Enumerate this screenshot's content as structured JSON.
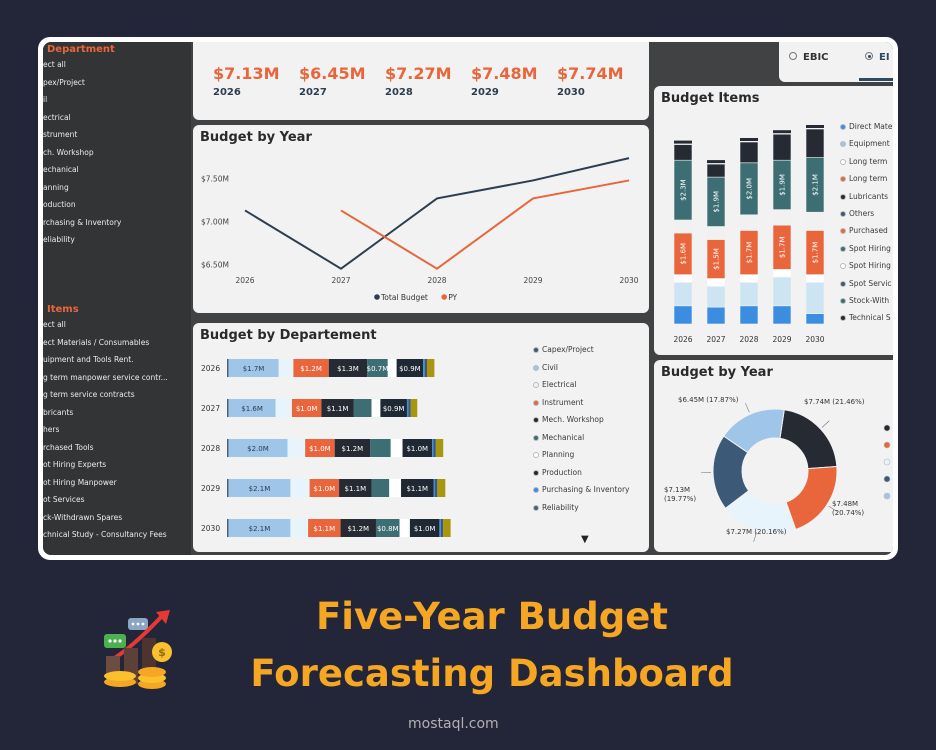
{
  "sidebar": {
    "department_header": "Department",
    "departments": [
      "ect all",
      "pex/Project",
      "il",
      "ectrical",
      "strument",
      "ch. Workshop",
      "echanical",
      "anning",
      "oduction",
      "rchasing & Inventory",
      "eliability"
    ],
    "items_header": "Items",
    "items": [
      "ect all",
      "ect Materials / Consumables",
      "uipment and Tools Rent.",
      "g term manpower service contr...",
      "g term service contracts",
      "bricants",
      "hers",
      "rchased Tools",
      "ot Hiring Experts",
      "ot Hiring Manpower",
      "ot Services",
      "ck-Withdrawn Spares",
      "chnical Study - Consultancy Fees"
    ]
  },
  "kpis": [
    {
      "value": "$7.13M",
      "year": "2026"
    },
    {
      "value": "$6.45M",
      "year": "2027"
    },
    {
      "value": "$7.27M",
      "year": "2028"
    },
    {
      "value": "$7.48M",
      "year": "2029"
    },
    {
      "value": "$7.74M",
      "year": "2030"
    }
  ],
  "tabs": {
    "ebic": "EBIC",
    "second": "EI"
  },
  "line_panel": {
    "title": "Budget by Year"
  },
  "dept_panel": {
    "title": "Budget by Departement"
  },
  "items_panel": {
    "title": "Budget Items"
  },
  "donut_panel": {
    "title": "Budget by Year"
  },
  "colors": {
    "orange": "#e9663c",
    "navy": "#2c3e50",
    "teal": "#3d6e73",
    "dark": "#252a33",
    "lightblue": "#9fc5e8",
    "pale": "#e7f4fb",
    "blue": "#3c8de0",
    "khaki": "#a8960f"
  },
  "chart_data": [
    {
      "type": "line",
      "title": "Budget by Year",
      "x": [
        "2026",
        "2027",
        "2028",
        "2029",
        "2030"
      ],
      "y_ticks": [
        "$6.50M",
        "$7.00M",
        "$7.50M"
      ],
      "ylim": [
        6.4,
        7.8
      ],
      "series": [
        {
          "name": "Total Budget",
          "color": "#2c3e50",
          "values": [
            7.13,
            6.45,
            7.27,
            7.48,
            7.74
          ]
        },
        {
          "name": "PY",
          "color": "#e9663c",
          "values": [
            null,
            7.13,
            6.45,
            7.27,
            7.48
          ]
        }
      ]
    },
    {
      "type": "bar",
      "orientation": "horizontal-stacked",
      "title": "Budget by Departement",
      "categories": [
        "2026",
        "2027",
        "2028",
        "2029",
        "2030"
      ],
      "series": [
        {
          "name": "Reliability",
          "color": "#4b5f75",
          "values": [
            0.05,
            0.05,
            0.05,
            0.05,
            0.05
          ]
        },
        {
          "name": "Civil",
          "color": "#9fc5e8",
          "values": [
            1.7,
            1.6,
            2.0,
            2.1,
            2.1
          ],
          "labels": [
            "$1.7M",
            "$1.6M",
            "$2.0M",
            "$2.1M",
            "$2.1M"
          ]
        },
        {
          "name": "Electrical",
          "color": "#e7f4fb",
          "values": [
            0.5,
            0.55,
            0.6,
            0.65,
            0.6
          ]
        },
        {
          "name": "Instrument",
          "color": "#e9663c",
          "values": [
            1.2,
            1.0,
            1.0,
            1.0,
            1.1
          ],
          "labels": [
            "$1.2M",
            "$1.0M",
            "$1.0M",
            "$1.0M",
            "$1.1M"
          ]
        },
        {
          "name": "Production",
          "color": "#252a33",
          "values": [
            1.3,
            1.1,
            1.2,
            1.1,
            1.2
          ],
          "labels": [
            "$1.3M",
            "$1.1M",
            "$1.2M",
            "$1.1M",
            "$1.2M"
          ]
        },
        {
          "name": "Mechanical",
          "color": "#3d6e73",
          "values": [
            0.7,
            0.6,
            0.7,
            0.6,
            0.8
          ],
          "labels": [
            "$0.7M",
            "",
            "",
            "",
            "$0.8M"
          ]
        },
        {
          "name": "Planning",
          "color": "#ffffff",
          "values": [
            0.3,
            0.3,
            0.4,
            0.4,
            0.35
          ]
        },
        {
          "name": "Mech. Workshop",
          "color": "#1e2933",
          "values": [
            0.9,
            0.9,
            1.0,
            1.1,
            1.0
          ],
          "labels": [
            "$0.9M",
            "$0.9M",
            "$1.0M",
            "$1.1M",
            "$1.0M"
          ]
        },
        {
          "name": "Purchasing & Inventory",
          "color": "#3c8de0",
          "values": [
            0.05,
            0.05,
            0.05,
            0.05,
            0.05
          ]
        },
        {
          "name": "Capex/Project",
          "color": "#3c5a78",
          "values": [
            0.08,
            0.08,
            0.08,
            0.08,
            0.08
          ]
        },
        {
          "name": "Other",
          "color": "#a8960f",
          "values": [
            0.25,
            0.22,
            0.25,
            0.27,
            0.25
          ]
        }
      ],
      "legend": [
        "Capex/Project",
        "Civil",
        "Electrical",
        "Instrument",
        "Mech. Workshop",
        "Mechanical",
        "Planning",
        "Production",
        "Purchasing & Inventory",
        "Reliability"
      ],
      "legend_colors": [
        "#3c5a78",
        "#9fc5e8",
        "#e7f4fb",
        "#e9663c",
        "#1e2933",
        "#3d6e73",
        "#ffffff",
        "#252a33",
        "#3c8de0",
        "#4b5f75"
      ]
    },
    {
      "type": "bar",
      "orientation": "vertical-stacked",
      "title": "Budget Items",
      "categories": [
        "2026",
        "2027",
        "2028",
        "2029",
        "2030"
      ],
      "series": [
        {
          "name": "Spot Hiring Experts",
          "color": "#3c8de0",
          "values": [
            0.7,
            0.65,
            0.7,
            0.7,
            0.4
          ]
        },
        {
          "name": "Equipment",
          "color": "#cde4f3",
          "values": [
            0.9,
            0.8,
            0.9,
            1.1,
            1.2
          ]
        },
        {
          "name": "Spot Hiring Manpower",
          "color": "#ffffff",
          "values": [
            0.3,
            0.3,
            0.3,
            0.3,
            0.3
          ]
        },
        {
          "name": "Long term manpower",
          "color": "#e9663c",
          "values": [
            1.6,
            1.5,
            1.7,
            1.7,
            1.7
          ],
          "labels": [
            "$1.6M",
            "$1.5M",
            "$1.7M",
            "$1.7M",
            "$1.7M"
          ]
        },
        {
          "name": "Purchased Tools",
          "color": "#f1f1f1",
          "values": [
            0.5,
            0.5,
            0.6,
            0.6,
            0.7
          ]
        },
        {
          "name": "Stock-Withdrawn",
          "color": "#3d6e73",
          "values": [
            2.3,
            1.9,
            2.0,
            1.9,
            2.1
          ],
          "labels": [
            "$2.3M",
            "$1.9M",
            "$2.0M",
            "$1.9M",
            "$2.1M"
          ]
        },
        {
          "name": "Technical Study",
          "color": "#252a33",
          "values": [
            0.6,
            0.5,
            0.8,
            1.0,
            1.1
          ]
        }
      ],
      "legend": [
        "Direct Mate",
        "Equipment",
        "Long term",
        "Long term",
        "Lubricants",
        "Others",
        "Purchased",
        "Spot Hiring",
        "Spot Hiring",
        "Spot Servic",
        "Stock-With",
        "Technical S"
      ],
      "legend_colors": [
        "#3c8de0",
        "#9fc5e8",
        "#ffffff",
        "#e9663c",
        "#252a33",
        "#3c5a78",
        "#e9663c",
        "#3d6e73",
        "#ffffff",
        "#3c5a78",
        "#3d6e73",
        "#252a33"
      ]
    },
    {
      "type": "pie",
      "title": "Budget by Year",
      "categories": [
        "2030",
        "2029",
        "2028",
        "2026",
        "2027"
      ],
      "values": [
        7.74,
        7.48,
        7.27,
        7.13,
        6.45
      ],
      "colors": [
        "#252a33",
        "#e9663c",
        "#e7f4fb",
        "#3c5a78",
        "#9fc5e8"
      ],
      "labels": [
        [
          "$7.74M (21.46%)"
        ],
        [
          "$7.48M",
          "(20.74%)"
        ],
        [
          "$7.27M (20.16%)"
        ],
        [
          "$7.13M",
          "(19.77%)"
        ],
        [
          "$6.45M (17.87%)"
        ]
      ],
      "legend_colors": [
        "#252a33",
        "#e9663c",
        "#e7f4fb",
        "#3c5a78",
        "#9fc5e8"
      ]
    }
  ],
  "caption": {
    "line1": "Five-Year Budget",
    "line2": "Forecasting Dashboard"
  },
  "watermark": "mostaql.com"
}
